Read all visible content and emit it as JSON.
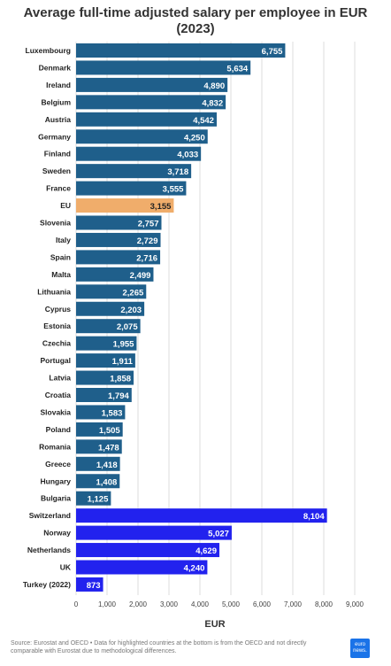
{
  "title": "Average full-time adjusted salary per employee in EUR",
  "subtitle": "(2023)",
  "source": "Source: Eurostat and OECD • Data for highlighted countries at the bottom is from the OECD and not directly comparable with Eurostat due to methodological differences.",
  "logo_text": "euro news.",
  "colors": {
    "eurostat": "#1f5f8b",
    "eu": "#f0ad6b",
    "oecd": "#2222ee",
    "grid": "#dddddd"
  },
  "chart_data": {
    "type": "bar",
    "orientation": "horizontal",
    "xlabel": "EUR",
    "xlim": [
      0,
      9000
    ],
    "xticks": [
      "0",
      "1,000",
      "2,000",
      "3,000",
      "4,000",
      "5,000",
      "6,000",
      "7,000",
      "8,000",
      "9,000"
    ],
    "grid": true,
    "bars": [
      {
        "label": "Luxembourg",
        "value": 6755,
        "text": "6,755",
        "group": "eurostat"
      },
      {
        "label": "Denmark",
        "value": 5634,
        "text": "5,634",
        "group": "eurostat"
      },
      {
        "label": "Ireland",
        "value": 4890,
        "text": "4,890",
        "group": "eurostat"
      },
      {
        "label": "Belgium",
        "value": 4832,
        "text": "4,832",
        "group": "eurostat"
      },
      {
        "label": "Austria",
        "value": 4542,
        "text": "4,542",
        "group": "eurostat"
      },
      {
        "label": "Germany",
        "value": 4250,
        "text": "4,250",
        "group": "eurostat"
      },
      {
        "label": "Finland",
        "value": 4033,
        "text": "4,033",
        "group": "eurostat"
      },
      {
        "label": "Sweden",
        "value": 3718,
        "text": "3,718",
        "group": "eurostat"
      },
      {
        "label": "France",
        "value": 3555,
        "text": "3,555",
        "group": "eurostat"
      },
      {
        "label": "EU",
        "value": 3155,
        "text": "3,155",
        "group": "eu"
      },
      {
        "label": "Slovenia",
        "value": 2757,
        "text": "2,757",
        "group": "eurostat"
      },
      {
        "label": "Italy",
        "value": 2729,
        "text": "2,729",
        "group": "eurostat"
      },
      {
        "label": "Spain",
        "value": 2716,
        "text": "2,716",
        "group": "eurostat"
      },
      {
        "label": "Malta",
        "value": 2499,
        "text": "2,499",
        "group": "eurostat"
      },
      {
        "label": "Lithuania",
        "value": 2265,
        "text": "2,265",
        "group": "eurostat"
      },
      {
        "label": "Cyprus",
        "value": 2203,
        "text": "2,203",
        "group": "eurostat"
      },
      {
        "label": "Estonia",
        "value": 2075,
        "text": "2,075",
        "group": "eurostat"
      },
      {
        "label": "Czechia",
        "value": 1955,
        "text": "1,955",
        "group": "eurostat"
      },
      {
        "label": "Portugal",
        "value": 1911,
        "text": "1,911",
        "group": "eurostat"
      },
      {
        "label": "Latvia",
        "value": 1858,
        "text": "1,858",
        "group": "eurostat"
      },
      {
        "label": "Croatia",
        "value": 1794,
        "text": "1,794",
        "group": "eurostat"
      },
      {
        "label": "Slovakia",
        "value": 1583,
        "text": "1,583",
        "group": "eurostat"
      },
      {
        "label": "Poland",
        "value": 1505,
        "text": "1,505",
        "group": "eurostat"
      },
      {
        "label": "Romania",
        "value": 1478,
        "text": "1,478",
        "group": "eurostat"
      },
      {
        "label": "Greece",
        "value": 1418,
        "text": "1,418",
        "group": "eurostat"
      },
      {
        "label": "Hungary",
        "value": 1408,
        "text": "1,408",
        "group": "eurostat"
      },
      {
        "label": "Bulgaria",
        "value": 1125,
        "text": "1,125",
        "group": "eurostat"
      },
      {
        "label": "Switzerland",
        "value": 8104,
        "text": "8,104",
        "group": "oecd"
      },
      {
        "label": "Norway",
        "value": 5027,
        "text": "5,027",
        "group": "oecd"
      },
      {
        "label": "Netherlands",
        "value": 4629,
        "text": "4,629",
        "group": "oecd"
      },
      {
        "label": "UK",
        "value": 4240,
        "text": "4,240",
        "group": "oecd"
      },
      {
        "label": "Turkey (2022)",
        "value": 873,
        "text": "873",
        "group": "oecd"
      }
    ]
  }
}
